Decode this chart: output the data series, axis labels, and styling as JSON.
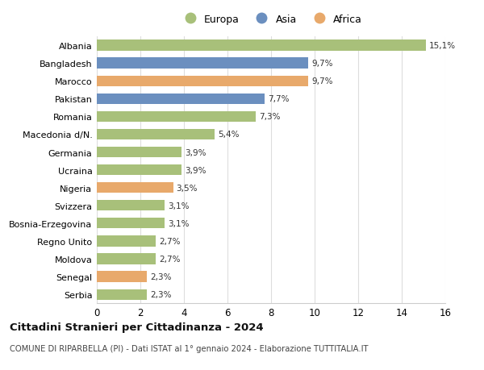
{
  "countries": [
    "Albania",
    "Bangladesh",
    "Marocco",
    "Pakistan",
    "Romania",
    "Macedonia d/N.",
    "Germania",
    "Ucraina",
    "Nigeria",
    "Svizzera",
    "Bosnia-Erzegovina",
    "Regno Unito",
    "Moldova",
    "Senegal",
    "Serbia"
  ],
  "values": [
    15.1,
    9.7,
    9.7,
    7.7,
    7.3,
    5.4,
    3.9,
    3.9,
    3.5,
    3.1,
    3.1,
    2.7,
    2.7,
    2.3,
    2.3
  ],
  "labels": [
    "15,1%",
    "9,7%",
    "9,7%",
    "7,7%",
    "7,3%",
    "5,4%",
    "3,9%",
    "3,9%",
    "3,5%",
    "3,1%",
    "3,1%",
    "2,7%",
    "2,7%",
    "2,3%",
    "2,3%"
  ],
  "continents": [
    "Europa",
    "Asia",
    "Africa",
    "Asia",
    "Europa",
    "Europa",
    "Europa",
    "Europa",
    "Africa",
    "Europa",
    "Europa",
    "Europa",
    "Europa",
    "Africa",
    "Europa"
  ],
  "colors": {
    "Europa": "#a8c07a",
    "Asia": "#6b8fbf",
    "Africa": "#e8a96b"
  },
  "legend_items": [
    "Europa",
    "Asia",
    "Africa"
  ],
  "xlim": [
    0,
    16
  ],
  "xticks": [
    0,
    2,
    4,
    6,
    8,
    10,
    12,
    14,
    16
  ],
  "title": "Cittadini Stranieri per Cittadinanza - 2024",
  "subtitle": "COMUNE DI RIPARBELLA (PI) - Dati ISTAT al 1° gennaio 2024 - Elaborazione TUTTITALIA.IT",
  "background_color": "#ffffff",
  "grid_color": "#dddddd",
  "bar_height": 0.6
}
